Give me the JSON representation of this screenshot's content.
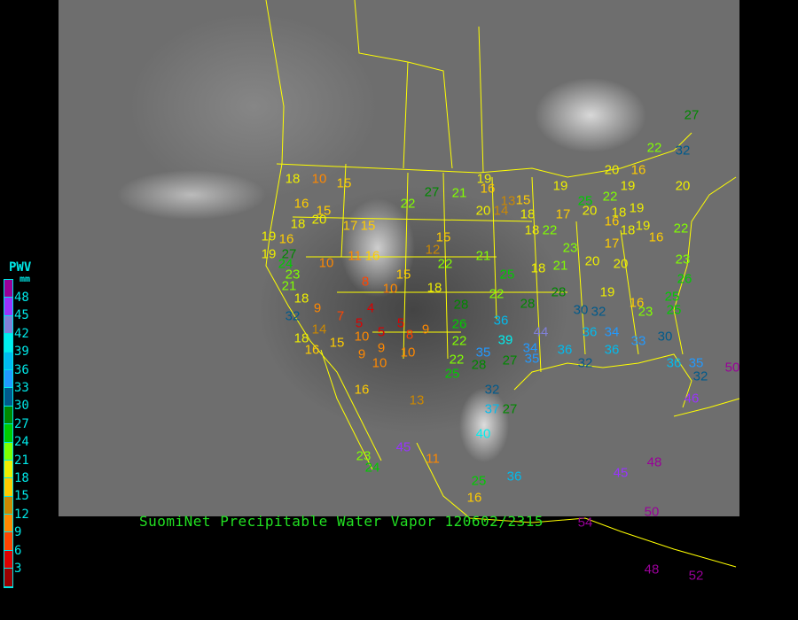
{
  "caption": "SuomiNet Precipitable Water Vapor 120602/2315",
  "legend": {
    "title": "PWV",
    "unit": "mm",
    "ticks": [
      "48",
      "45",
      "42",
      "39",
      "36",
      "33",
      "30",
      "27",
      "24",
      "21",
      "18",
      "15",
      "12",
      "9",
      "6",
      "3"
    ],
    "colors": [
      "#990099",
      "#9933ff",
      "#8080d8",
      "#00eeee",
      "#00bbee",
      "#2299ff",
      "#005a8c",
      "#008800",
      "#00cc00",
      "#80ff00",
      "#eeee00",
      "#ffcc00",
      "#cc8800",
      "#ff8800",
      "#ff4400",
      "#dd0000",
      "#990000"
    ]
  },
  "map": {
    "type": "satellite-imagery",
    "boundary_color": "#ffff00"
  },
  "stations": [
    18,
    10,
    15,
    16,
    15,
    18,
    20,
    17,
    15,
    19,
    16,
    19,
    27,
    24,
    23,
    21,
    18,
    10,
    11,
    16,
    15,
    8,
    10,
    18,
    12,
    15,
    22,
    22,
    27,
    21,
    19,
    16,
    13,
    15,
    20,
    14,
    18,
    18,
    22,
    21,
    25,
    18,
    21,
    28,
    26,
    22,
    22,
    28,
    25,
    36,
    39,
    34,
    35,
    35,
    27,
    44,
    36,
    36,
    30,
    32,
    34,
    36,
    32,
    33,
    30,
    36,
    35,
    32,
    46,
    19,
    16,
    23,
    25,
    25,
    26,
    23,
    22,
    16,
    19,
    18,
    18,
    19,
    16,
    20,
    17,
    19,
    25,
    22,
    19,
    16,
    20,
    22,
    32,
    27,
    20,
    23,
    20,
    20,
    17,
    28,
    28,
    22,
    32,
    14,
    15,
    16,
    9,
    7,
    5,
    4,
    10,
    5,
    5,
    8,
    9,
    9,
    9,
    10,
    10,
    16,
    13,
    32,
    37,
    27,
    40,
    45,
    11,
    23,
    24,
    25,
    36,
    16,
    45,
    48,
    50,
    54,
    48,
    52,
    50,
    18
  ]
}
